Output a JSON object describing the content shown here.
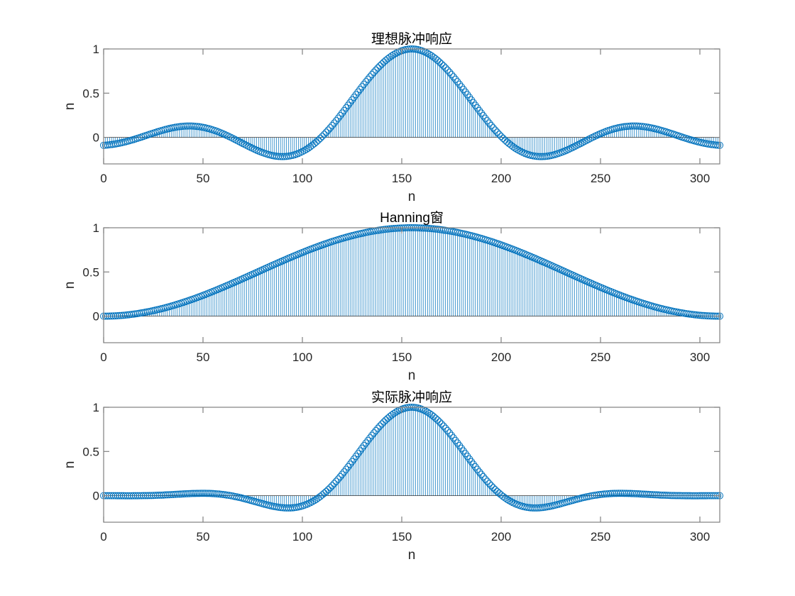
{
  "figure": {
    "background": "#ffffff",
    "stem_color": "#0072bd",
    "axes_color": "#808080",
    "text_color": "#262626"
  },
  "chart_data": [
    {
      "type": "stem",
      "title": "理想脉冲响应",
      "xlabel": "n",
      "ylabel": "n",
      "xlim": [
        0,
        310
      ],
      "ylim": [
        -0.3,
        1
      ],
      "xticks": [
        "0",
        "50",
        "100",
        "150",
        "200",
        "250",
        "300"
      ],
      "yticks": [
        "0",
        "0.5",
        "1"
      ],
      "grid": false,
      "model": {
        "kind": "sinc",
        "N": 311,
        "center": 155,
        "half_mainlobe": 45.5
      },
      "sample_points": {
        "n": [
          0,
          25,
          49,
          70,
          92,
          110,
          130,
          155,
          180,
          200,
          218,
          240,
          261,
          285,
          310
        ],
        "value": [
          -0.08,
          0.02,
          0.13,
          0.0,
          -0.22,
          0.0,
          0.55,
          1.0,
          0.55,
          0.0,
          -0.22,
          0.0,
          0.13,
          0.02,
          -0.08
        ]
      }
    },
    {
      "type": "stem",
      "title": "Hanning窗",
      "xlabel": "n",
      "ylabel": "n",
      "xlim": [
        0,
        310
      ],
      "ylim": [
        -0.3,
        1
      ],
      "xticks": [
        "0",
        "50",
        "100",
        "150",
        "200",
        "250",
        "300"
      ],
      "yticks": [
        "0",
        "0.5",
        "1"
      ],
      "grid": false,
      "model": {
        "kind": "hanning",
        "N": 311
      },
      "sample_points": {
        "n": [
          0,
          25,
          50,
          75,
          100,
          125,
          155,
          185,
          210,
          235,
          260,
          285,
          310
        ],
        "value": [
          0.0,
          0.06,
          0.23,
          0.46,
          0.71,
          0.91,
          1.0,
          0.91,
          0.71,
          0.46,
          0.23,
          0.06,
          0.0
        ]
      }
    },
    {
      "type": "stem",
      "title": "实际脉冲响应",
      "xlabel": "n",
      "ylabel": "n",
      "xlim": [
        0,
        310
      ],
      "ylim": [
        -0.3,
        1
      ],
      "xticks": [
        "0",
        "50",
        "100",
        "150",
        "200",
        "250",
        "300"
      ],
      "yticks": [
        "0",
        "0.5",
        "1"
      ],
      "grid": false,
      "model": {
        "kind": "sinc_x_hanning",
        "N": 311,
        "center": 155,
        "half_mainlobe": 45.5
      },
      "sample_points": {
        "n": [
          0,
          25,
          55,
          75,
          95,
          110,
          130,
          155,
          180,
          200,
          215,
          235,
          255,
          285,
          310
        ],
        "value": [
          0.0,
          0.0,
          0.03,
          0.0,
          -0.14,
          0.0,
          0.5,
          1.0,
          0.5,
          0.0,
          -0.14,
          0.0,
          0.03,
          0.0,
          0.0
        ]
      }
    }
  ]
}
